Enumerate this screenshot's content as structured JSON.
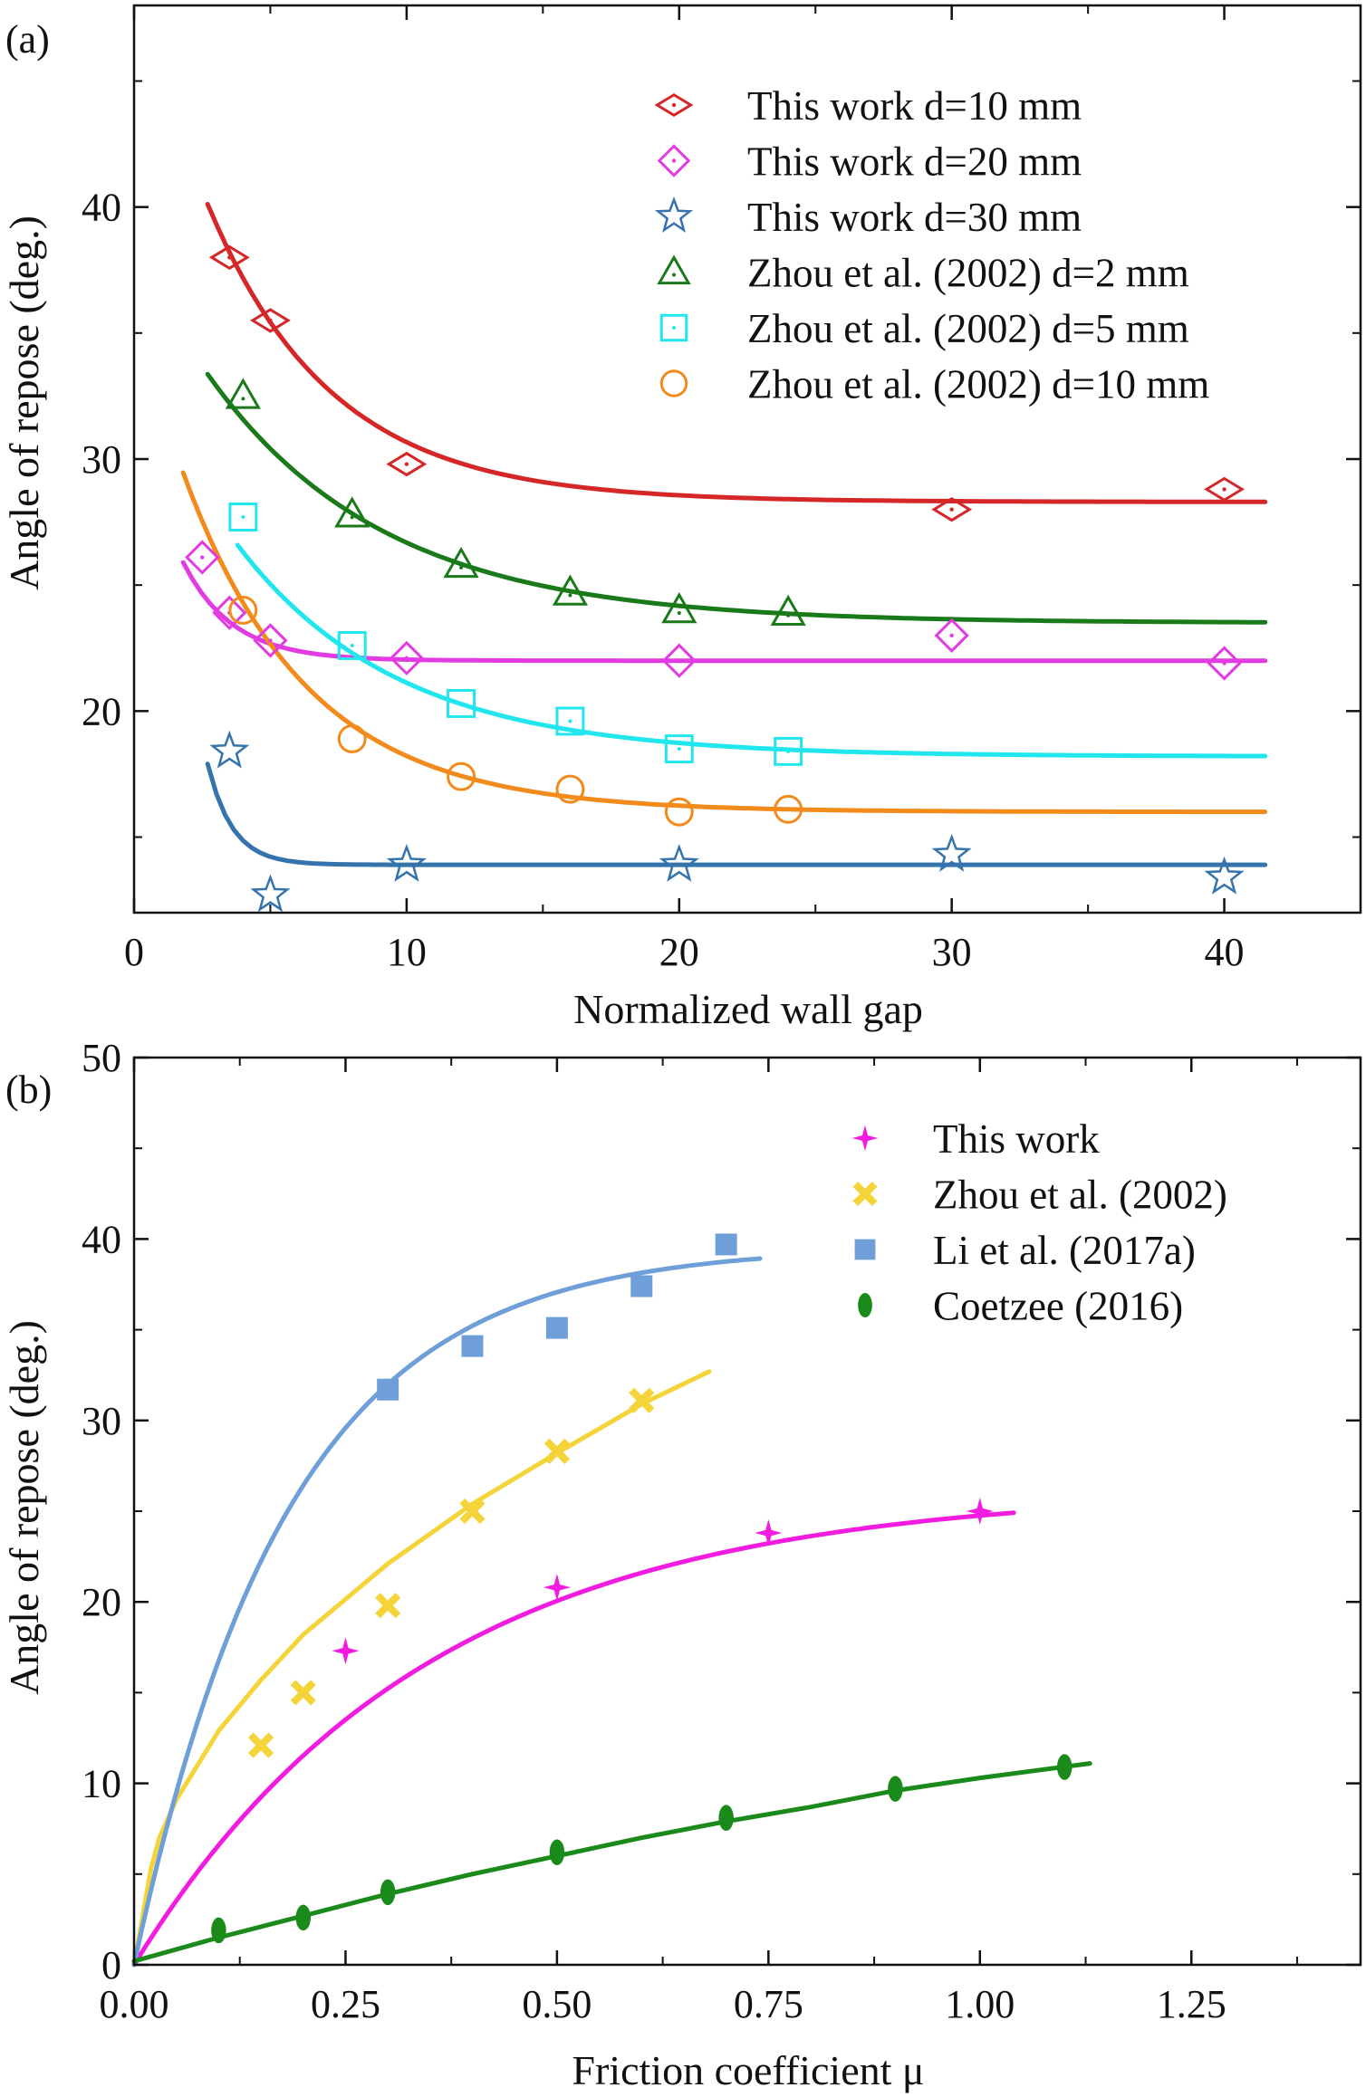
{
  "panels": [
    {
      "label": "(a)",
      "xlabel": "Normalized wall gap",
      "ylabel": "Angle of repose (deg.)"
    },
    {
      "label": "(b)",
      "xlabel": "Friction coefficient μ",
      "ylabel": "Angle of repose (deg.)"
    }
  ],
  "chart_data": [
    {
      "type": "scatter",
      "panel": "(a)",
      "title": "",
      "xlabel": "Normalized wall gap",
      "ylabel": "Angle of repose (deg.)",
      "xlim": [
        0,
        45
      ],
      "ylim": [
        12,
        48
      ],
      "x_ticks": [
        0,
        10,
        20,
        30,
        40
      ],
      "y_ticks": [
        20,
        30,
        40
      ],
      "grid": false,
      "legend_position": "top-right",
      "series": [
        {
          "name": "This work d=10 mm",
          "marker": "diamond-dot",
          "color": "#d62728",
          "points": [
            [
              3.5,
              38.0
            ],
            [
              5,
              35.5
            ],
            [
              10,
              29.8
            ],
            [
              30,
              28.0
            ],
            [
              40,
              28.8
            ]
          ],
          "fit": {
            "plateau": 28.3,
            "amp": 21.4,
            "rate": 0.22,
            "xmin": 2.7,
            "xmax": 41.5
          }
        },
        {
          "name": "This work d=20 mm",
          "marker": "diamond",
          "color": "#e23be2",
          "points": [
            [
              2.5,
              26.1
            ],
            [
              3.5,
              23.9
            ],
            [
              5,
              22.8
            ],
            [
              10,
              22.1
            ],
            [
              20,
              22.0
            ],
            [
              30,
              23.0
            ],
            [
              40,
              21.9
            ]
          ],
          "fit": {
            "plateau": 22.0,
            "amp": 10.5,
            "rate": 0.55,
            "xmin": 1.8,
            "xmax": 41.5
          }
        },
        {
          "name": "This work d=30 mm",
          "marker": "star",
          "color": "#3573ad",
          "points": [
            [
              3.5,
              18.4
            ],
            [
              5,
              12.7
            ],
            [
              10,
              13.9
            ],
            [
              20,
              13.9
            ],
            [
              30,
              14.3
            ],
            [
              40,
              13.4
            ]
          ],
          "fit": {
            "plateau": 13.9,
            "amp": 78.0,
            "rate": 1.1,
            "xmin": 2.7,
            "xmax": 41.5
          }
        },
        {
          "name": "Zhou et al. (2002) d=2 mm",
          "marker": "triangle",
          "color": "#1a7a1a",
          "points": [
            [
              4,
              32.5
            ],
            [
              8,
              27.8
            ],
            [
              12,
              25.8
            ],
            [
              16,
              24.7
            ],
            [
              20,
              24.0
            ],
            [
              24,
              23.9
            ]
          ],
          "fit": {
            "plateau": 23.5,
            "amp": 15.0,
            "rate": 0.155,
            "xmin": 2.7,
            "xmax": 41.5
          }
        },
        {
          "name": "Zhou et al. (2002) d=5 mm",
          "marker": "square",
          "color": "#22e6ee",
          "points": [
            [
              4,
              27.7
            ],
            [
              8,
              22.6
            ],
            [
              12,
              20.3
            ],
            [
              16,
              19.6
            ],
            [
              20,
              18.5
            ],
            [
              24,
              18.4
            ]
          ],
          "fit": {
            "plateau": 18.2,
            "amp": 16.0,
            "rate": 0.17,
            "xmin": 3.8,
            "xmax": 41.5
          }
        },
        {
          "name": "Zhou et al. (2002) d=10 mm",
          "marker": "circle",
          "color": "#f28a1c",
          "points": [
            [
              4,
              24.0
            ],
            [
              8,
              18.9
            ],
            [
              12,
              17.4
            ],
            [
              16,
              16.9
            ],
            [
              20,
              16.0
            ],
            [
              24,
              16.1
            ]
          ],
          "fit": {
            "plateau": 16.0,
            "amp": 20.0,
            "rate": 0.22,
            "xmin": 1.8,
            "xmax": 41.5
          }
        }
      ]
    },
    {
      "type": "scatter",
      "panel": "(b)",
      "title": "",
      "xlabel": "Friction coefficient μ",
      "ylabel": "Angle of repose (deg.)",
      "xlim": [
        0,
        1.45
      ],
      "ylim": [
        0,
        50
      ],
      "x_ticks": [
        "0.00",
        "0.25",
        "0.50",
        "0.75",
        "1.00",
        "1.25"
      ],
      "y_ticks": [
        0,
        10,
        20,
        30,
        40,
        50
      ],
      "grid": false,
      "legend_position": "top-right",
      "series": [
        {
          "name": "This work",
          "marker": "four-point-star",
          "color": "#f21ce0",
          "points": [
            [
              0.25,
              17.3
            ],
            [
              0.5,
              20.8
            ],
            [
              0.75,
              23.8
            ],
            [
              1.0,
              25.0
            ]
          ],
          "fit": {
            "kind": "exp",
            "a": 26.2,
            "k": 2.9,
            "xmin": 0.0,
            "xmax": 1.04
          }
        },
        {
          "name": "Zhou et al. (2002)",
          "marker": "x",
          "color": "#f5d43a",
          "points": [
            [
              0.15,
              12.1
            ],
            [
              0.2,
              15.0
            ],
            [
              0.3,
              19.8
            ],
            [
              0.4,
              25.0
            ],
            [
              0.5,
              28.3
            ],
            [
              0.6,
              31.1
            ]
          ],
          "fit": {
            "kind": "custom",
            "pts": [
              [
                0.0,
                0.0
              ],
              [
                0.02,
                5.3
              ],
              [
                0.03,
                7.0
              ],
              [
                0.05,
                9.1
              ],
              [
                0.1,
                12.9
              ],
              [
                0.15,
                15.7
              ],
              [
                0.2,
                18.2
              ],
              [
                0.3,
                22.1
              ],
              [
                0.4,
                25.4
              ],
              [
                0.5,
                28.2
              ],
              [
                0.6,
                30.9
              ],
              [
                0.68,
                32.7
              ]
            ]
          }
        },
        {
          "name": "Li et al. (2017a)",
          "marker": "square-filled",
          "color": "#6f9fd8",
          "points": [
            [
              0.3,
              31.7
            ],
            [
              0.4,
              34.1
            ],
            [
              0.5,
              35.1
            ],
            [
              0.6,
              37.4
            ],
            [
              0.7,
              39.7
            ]
          ],
          "fit": {
            "kind": "exp",
            "a": 39.6,
            "k": 5.5,
            "xmin": 0.0,
            "xmax": 0.74
          }
        },
        {
          "name": "Coetzee (2016)",
          "marker": "ellipse-filled",
          "color": "#1a8a1a",
          "points": [
            [
              0.1,
              1.9
            ],
            [
              0.2,
              2.6
            ],
            [
              0.3,
              4.0
            ],
            [
              0.5,
              6.2
            ],
            [
              0.7,
              8.1
            ],
            [
              0.9,
              9.7
            ],
            [
              1.1,
              10.9
            ]
          ],
          "fit": {
            "kind": "custom",
            "pts": [
              [
                0.0,
                0.2
              ],
              [
                0.1,
                1.5
              ],
              [
                0.2,
                2.7
              ],
              [
                0.3,
                3.9
              ],
              [
                0.4,
                5.0
              ],
              [
                0.5,
                6.0
              ],
              [
                0.6,
                7.0
              ],
              [
                0.7,
                7.9
              ],
              [
                0.8,
                8.7
              ],
              [
                0.9,
                9.6
              ],
              [
                1.0,
                10.3
              ],
              [
                1.13,
                11.1
              ]
            ]
          }
        }
      ]
    }
  ]
}
